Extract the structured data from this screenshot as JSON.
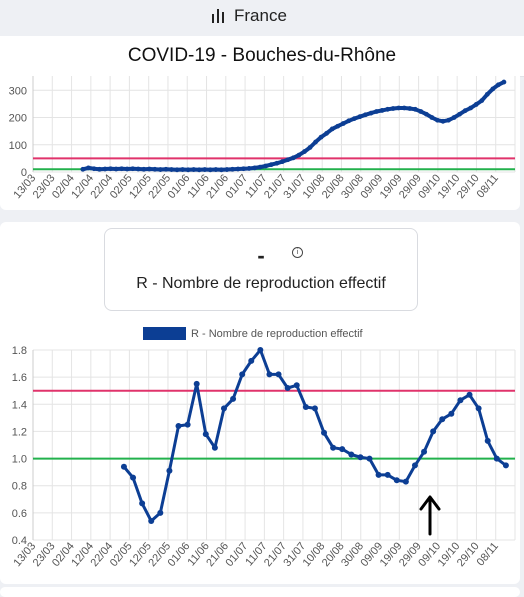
{
  "header": {
    "country": "France",
    "icon": "bar-chart-icon"
  },
  "title": "COVID-19 - Bouches-du-Rhône",
  "r_card": {
    "value": "-",
    "info_icon": "info-icon",
    "label": "R - Nombre de reproduction effectif"
  },
  "chart_data": [
    {
      "type": "line",
      "ylim": [
        0,
        330
      ],
      "yticks": [
        "0",
        "100",
        "200",
        "300"
      ],
      "categories": [
        "13/03",
        "23/03",
        "02/04",
        "12/04",
        "22/04",
        "02/05",
        "12/05",
        "22/05",
        "01/06",
        "11/06",
        "21/06",
        "01/07",
        "11/07",
        "21/07",
        "31/07",
        "10/08",
        "20/08",
        "30/08",
        "09/09",
        "19/09",
        "29/09",
        "09/10",
        "19/10",
        "29/10",
        "08/11"
      ],
      "thresholds": [
        {
          "value": 50,
          "color": "#e0336b"
        },
        {
          "value": 10,
          "color": "#22b14c"
        }
      ],
      "series": [
        {
          "color": "#0c3e94",
          "points": [
            [
              9,
              10
            ],
            [
              10,
              15
            ],
            [
              11,
              12
            ],
            [
              12,
              10
            ],
            [
              13,
              11
            ],
            [
              14,
              12
            ],
            [
              15,
              11
            ],
            [
              16,
              12
            ],
            [
              17,
              11
            ],
            [
              18,
              12
            ],
            [
              19,
              11
            ],
            [
              20,
              10
            ],
            [
              21,
              11
            ],
            [
              22,
              10
            ],
            [
              23,
              9
            ],
            [
              24,
              10
            ],
            [
              25,
              9
            ],
            [
              26,
              8
            ],
            [
              27,
              9
            ],
            [
              28,
              8
            ],
            [
              29,
              9
            ],
            [
              30,
              8
            ],
            [
              31,
              9
            ],
            [
              32,
              8
            ],
            [
              33,
              9
            ],
            [
              34,
              8
            ],
            [
              35,
              9
            ],
            [
              36,
              10
            ],
            [
              37,
              11
            ],
            [
              38,
              12
            ],
            [
              39,
              13
            ],
            [
              40,
              15
            ],
            [
              41,
              18
            ],
            [
              42,
              22
            ],
            [
              43,
              27
            ],
            [
              44,
              32
            ],
            [
              45,
              38
            ],
            [
              46,
              45
            ],
            [
              47,
              52
            ],
            [
              48,
              62
            ],
            [
              49,
              75
            ],
            [
              50,
              90
            ],
            [
              51,
              110
            ],
            [
              52,
              128
            ],
            [
              53,
              142
            ],
            [
              54,
              158
            ],
            [
              55,
              168
            ],
            [
              56,
              178
            ],
            [
              57,
              188
            ],
            [
              58,
              196
            ],
            [
              59,
              203
            ],
            [
              60,
              210
            ],
            [
              61,
              216
            ],
            [
              62,
              222
            ],
            [
              63,
              226
            ],
            [
              64,
              230
            ],
            [
              65,
              233
            ],
            [
              66,
              235
            ],
            [
              67,
              235
            ],
            [
              68,
              233
            ],
            [
              69,
              230
            ],
            [
              70,
              222
            ],
            [
              71,
              212
            ],
            [
              72,
              200
            ],
            [
              73,
              190
            ],
            [
              74,
              186
            ],
            [
              75,
              190
            ],
            [
              76,
              200
            ],
            [
              77,
              212
            ],
            [
              78,
              225
            ],
            [
              79,
              235
            ],
            [
              80,
              248
            ],
            [
              81,
              262
            ],
            [
              82,
              285
            ],
            [
              83,
              305
            ],
            [
              84,
              320
            ],
            [
              85,
              330
            ]
          ]
        }
      ]
    },
    {
      "type": "line",
      "legend": "R - Nombre de reproduction effectif",
      "legend_position": "top-center",
      "ylim": [
        0.4,
        1.8
      ],
      "yticks": [
        "0.4",
        "0.6",
        "0.8",
        "1.0",
        "1.2",
        "1.4",
        "1.6",
        "1.8"
      ],
      "categories": [
        "13/03",
        "23/03",
        "02/04",
        "12/04",
        "22/04",
        "02/05",
        "12/05",
        "22/05",
        "01/06",
        "11/06",
        "21/06",
        "01/07",
        "11/07",
        "21/07",
        "31/07",
        "10/08",
        "20/08",
        "30/08",
        "09/09",
        "19/09",
        "29/09",
        "09/10",
        "19/10",
        "29/10",
        "08/11"
      ],
      "thresholds": [
        {
          "value": 1.5,
          "color": "#e0336b"
        },
        {
          "value": 1.0,
          "color": "#22b14c"
        }
      ],
      "series": [
        {
          "name": "R - Nombre de reproduction effectif",
          "color": "#0c3e94",
          "points": [
            [
              10,
              0.94
            ],
            [
              11,
              0.86
            ],
            [
              12,
              0.67
            ],
            [
              13,
              0.54
            ],
            [
              14,
              0.6
            ],
            [
              15,
              0.91
            ],
            [
              16,
              1.24
            ],
            [
              17,
              1.25
            ],
            [
              18,
              1.55
            ],
            [
              19,
              1.18
            ],
            [
              20,
              1.08
            ],
            [
              21,
              1.37
            ],
            [
              22,
              1.44
            ],
            [
              23,
              1.62
            ],
            [
              24,
              1.72
            ],
            [
              25,
              1.8
            ],
            [
              26,
              1.62
            ],
            [
              27,
              1.62
            ],
            [
              28,
              1.52
            ],
            [
              29,
              1.54
            ],
            [
              30,
              1.38
            ],
            [
              31,
              1.37
            ],
            [
              32,
              1.19
            ],
            [
              33,
              1.08
            ],
            [
              34,
              1.07
            ],
            [
              35,
              1.03
            ],
            [
              36,
              1.01
            ],
            [
              37,
              1.0
            ],
            [
              38,
              0.88
            ],
            [
              39,
              0.88
            ],
            [
              40,
              0.84
            ],
            [
              41,
              0.83
            ],
            [
              42,
              0.95
            ],
            [
              43,
              1.05
            ],
            [
              44,
              1.2
            ],
            [
              45,
              1.29
            ],
            [
              46,
              1.33
            ],
            [
              47,
              1.43
            ],
            [
              48,
              1.47
            ],
            [
              49,
              1.37
            ],
            [
              50,
              1.13
            ],
            [
              51,
              1.0
            ],
            [
              52,
              0.95
            ]
          ]
        }
      ]
    }
  ]
}
